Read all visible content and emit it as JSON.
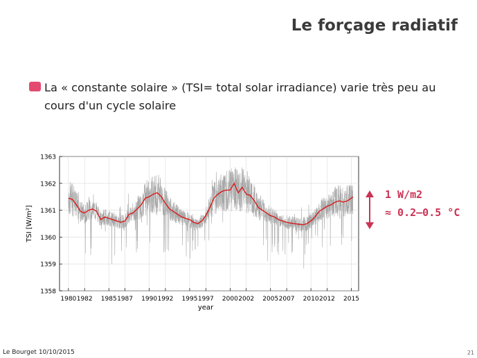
{
  "slide": {
    "title": "Le forçage radiatif",
    "bullet": "La « constante solaire » (TSI= total solar irradiance) varie très peu au cours d'un cycle solaire",
    "bullet_color": "#e34a6f"
  },
  "annotation": {
    "line1": "1 W/m2",
    "line2": "≈ 0.2–0.5 °C",
    "color": "#cc3355"
  },
  "footer": {
    "left": "Le Bourget 10/10/2015",
    "page": "21"
  },
  "chart_data": {
    "type": "line",
    "xlabel": "year",
    "ylabel": "TSI [W/m²]",
    "xlim": [
      1978.9,
      2015.9
    ],
    "ylim": [
      1358,
      1363
    ],
    "x_ticks": [
      "1980",
      "1982",
      "1985",
      "1987",
      "1990",
      "1992",
      "1995",
      "1997",
      "2000",
      "2002",
      "2005",
      "2007",
      "2010",
      "2012",
      "2015"
    ],
    "y_ticks": [
      1358,
      1359,
      1360,
      1361,
      1362,
      1363
    ],
    "grid": true,
    "series": [
      {
        "style": "daily",
        "color": "#a8a8a8",
        "x": [
          1980.0,
          1980.5,
          1981.0,
          1981.5,
          1982.0,
          1982.5,
          1983.0,
          1983.5,
          1984.0,
          1984.5,
          1985.0,
          1985.5,
          1986.0,
          1986.5,
          1987.0,
          1987.5,
          1988.0,
          1988.5,
          1989.0,
          1989.5,
          1990.0,
          1990.5,
          1991.0,
          1991.5,
          1992.0,
          1992.5,
          1993.0,
          1993.5,
          1994.0,
          1994.5,
          1995.0,
          1995.5,
          1996.0,
          1996.5,
          1997.0,
          1997.5,
          1998.0,
          1998.5,
          1999.0,
          1999.5,
          2000.0,
          2000.5,
          2001.0,
          2001.5,
          2002.0,
          2002.5,
          2003.0,
          2003.5,
          2004.0,
          2004.5,
          2005.0,
          2005.5,
          2006.0,
          2006.5,
          2007.0,
          2007.5,
          2008.0,
          2008.5,
          2009.0,
          2009.5,
          2010.0,
          2010.5,
          2011.0,
          2011.5,
          2012.0,
          2012.5,
          2013.0,
          2013.5,
          2014.0,
          2014.5,
          2015.0,
          2015.2
        ],
        "y": [
          1361.45,
          1361.4,
          1361.2,
          1360.95,
          1360.9,
          1361.0,
          1361.05,
          1360.95,
          1360.65,
          1360.75,
          1360.7,
          1360.65,
          1360.6,
          1360.55,
          1360.6,
          1360.85,
          1360.9,
          1361.05,
          1361.2,
          1361.45,
          1361.5,
          1361.6,
          1361.65,
          1361.5,
          1361.25,
          1361.05,
          1360.95,
          1360.85,
          1360.75,
          1360.7,
          1360.65,
          1360.55,
          1360.5,
          1360.6,
          1360.8,
          1361.1,
          1361.45,
          1361.6,
          1361.7,
          1361.75,
          1361.75,
          1362.0,
          1361.65,
          1361.85,
          1361.6,
          1361.55,
          1361.35,
          1361.1,
          1361.0,
          1360.9,
          1360.8,
          1360.75,
          1360.65,
          1360.6,
          1360.55,
          1360.52,
          1360.5,
          1360.48,
          1360.46,
          1360.5,
          1360.6,
          1360.75,
          1360.95,
          1361.05,
          1361.15,
          1361.2,
          1361.3,
          1361.35,
          1361.3,
          1361.35,
          1361.45,
          1361.5
        ]
      },
      {
        "style": "smoothed",
        "color": "#dd1111",
        "x": [
          1980.0,
          1980.5,
          1981.0,
          1981.5,
          1982.0,
          1982.5,
          1983.0,
          1983.5,
          1984.0,
          1984.5,
          1985.0,
          1985.5,
          1986.0,
          1986.5,
          1987.0,
          1987.5,
          1988.0,
          1988.5,
          1989.0,
          1989.5,
          1990.0,
          1990.5,
          1991.0,
          1991.5,
          1992.0,
          1992.5,
          1993.0,
          1993.5,
          1994.0,
          1994.5,
          1995.0,
          1995.5,
          1996.0,
          1996.5,
          1997.0,
          1997.5,
          1998.0,
          1998.5,
          1999.0,
          1999.5,
          2000.0,
          2000.5,
          2001.0,
          2001.5,
          2002.0,
          2002.5,
          2003.0,
          2003.5,
          2004.0,
          2004.5,
          2005.0,
          2005.5,
          2006.0,
          2006.5,
          2007.0,
          2007.5,
          2008.0,
          2008.5,
          2009.0,
          2009.5,
          2010.0,
          2010.5,
          2011.0,
          2011.5,
          2012.0,
          2012.5,
          2013.0,
          2013.5,
          2014.0,
          2014.5,
          2015.0,
          2015.2
        ],
        "y": [
          1361.45,
          1361.4,
          1361.2,
          1360.95,
          1360.9,
          1361.0,
          1361.05,
          1360.95,
          1360.65,
          1360.75,
          1360.7,
          1360.65,
          1360.6,
          1360.55,
          1360.6,
          1360.85,
          1360.9,
          1361.05,
          1361.2,
          1361.45,
          1361.5,
          1361.6,
          1361.65,
          1361.5,
          1361.25,
          1361.05,
          1360.95,
          1360.85,
          1360.75,
          1360.7,
          1360.65,
          1360.55,
          1360.5,
          1360.6,
          1360.8,
          1361.1,
          1361.45,
          1361.6,
          1361.7,
          1361.75,
          1361.75,
          1362.0,
          1361.65,
          1361.85,
          1361.6,
          1361.55,
          1361.35,
          1361.1,
          1361.0,
          1360.9,
          1360.8,
          1360.75,
          1360.65,
          1360.6,
          1360.55,
          1360.52,
          1360.5,
          1360.48,
          1360.46,
          1360.5,
          1360.6,
          1360.75,
          1360.95,
          1361.05,
          1361.15,
          1361.2,
          1361.3,
          1361.35,
          1361.3,
          1361.35,
          1361.45,
          1361.5
        ]
      }
    ]
  }
}
